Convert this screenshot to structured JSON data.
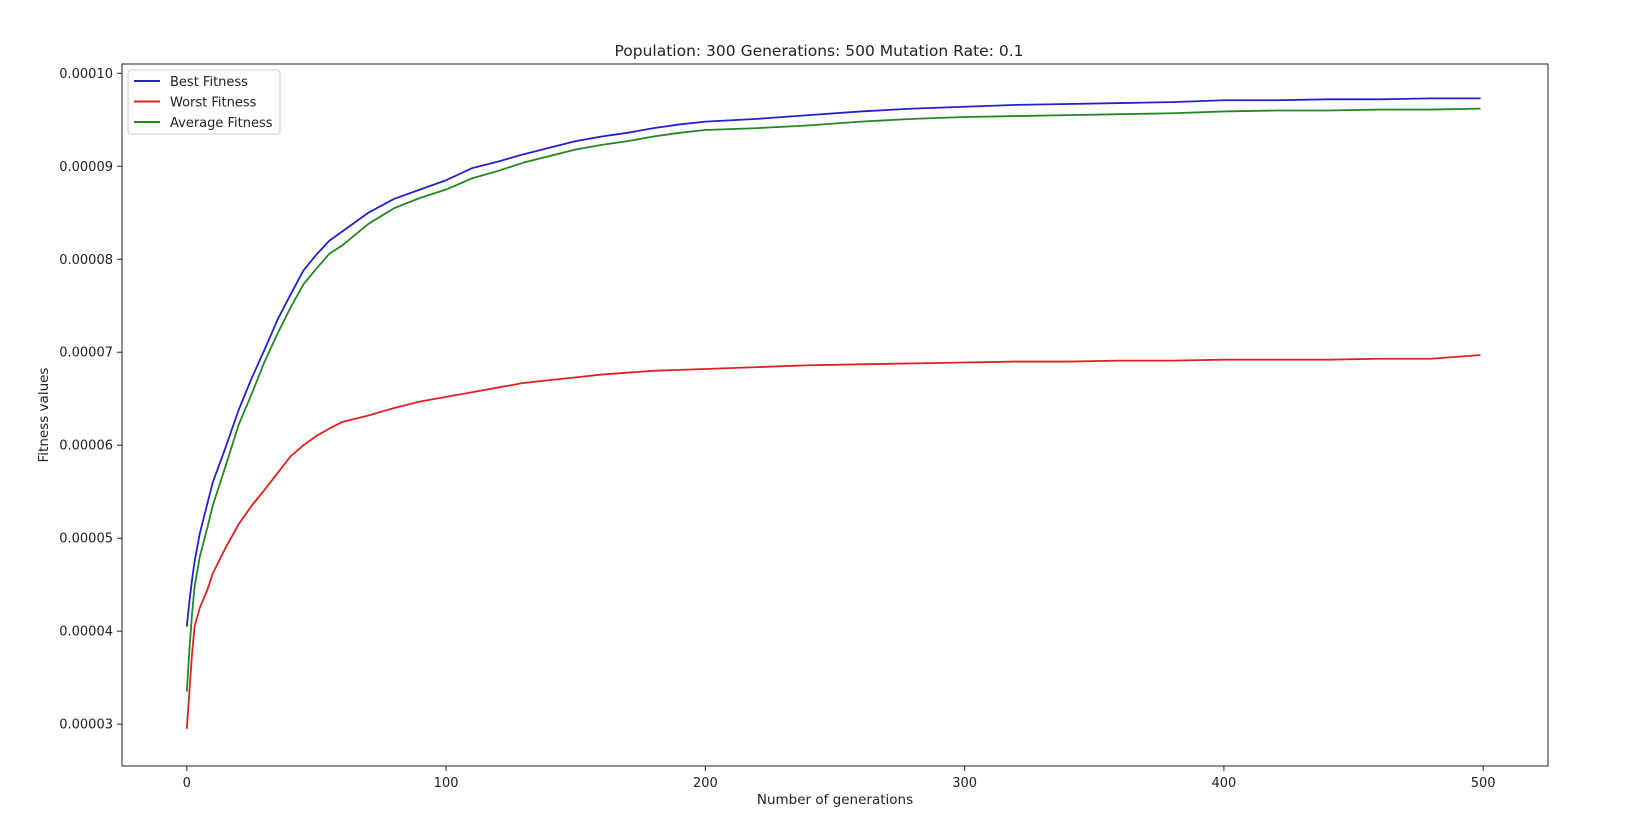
{
  "chart_data": {
    "type": "line",
    "title": "Population: 300 Generations: 500 Mutation Rate: 0.1",
    "xlabel": "Number of generations",
    "ylabel": "Fitness values",
    "xlim": [
      -25,
      525
    ],
    "ylim": [
      2.55e-05,
      0.000101
    ],
    "x_ticks": [
      0,
      100,
      200,
      300,
      400,
      500
    ],
    "x_tick_labels": [
      "0",
      "100",
      "200",
      "300",
      "400",
      "500"
    ],
    "y_ticks": [
      3e-05,
      4e-05,
      5e-05,
      6e-05,
      7e-05,
      8e-05,
      9e-05,
      0.0001
    ],
    "y_tick_labels": [
      "0.00003",
      "0.00004",
      "0.00005",
      "0.00006",
      "0.00007",
      "0.00008",
      "0.00009",
      "0.00010"
    ],
    "grid": false,
    "legend_position": "top-left",
    "x": [
      0,
      1,
      2,
      3,
      5,
      8,
      10,
      15,
      20,
      25,
      30,
      35,
      40,
      45,
      50,
      55,
      60,
      70,
      80,
      90,
      100,
      110,
      120,
      130,
      140,
      150,
      160,
      170,
      180,
      190,
      200,
      220,
      240,
      260,
      280,
      300,
      320,
      340,
      360,
      380,
      400,
      420,
      440,
      460,
      480,
      499
    ],
    "series": [
      {
        "name": "Best Fitness",
        "color": "#2222cc",
        "values": [
          4.05e-05,
          4.32e-05,
          4.55e-05,
          4.75e-05,
          5.05e-05,
          5.38e-05,
          5.6e-05,
          5.98e-05,
          6.38e-05,
          6.72e-05,
          7.03e-05,
          7.35e-05,
          7.62e-05,
          7.88e-05,
          8.05e-05,
          8.2e-05,
          8.3e-05,
          8.5e-05,
          8.65e-05,
          8.75e-05,
          8.85e-05,
          8.98e-05,
          9.05e-05,
          9.13e-05,
          9.2e-05,
          9.27e-05,
          9.32e-05,
          9.36e-05,
          9.41e-05,
          9.45e-05,
          9.48e-05,
          9.51e-05,
          9.55e-05,
          9.59e-05,
          9.62e-05,
          9.64e-05,
          9.66e-05,
          9.67e-05,
          9.68e-05,
          9.69e-05,
          9.71e-05,
          9.71e-05,
          9.72e-05,
          9.72e-05,
          9.73e-05,
          9.73e-05
        ]
      },
      {
        "name": "Worst Fitness",
        "color": "#dd2222",
        "values": [
          2.95e-05,
          3.35e-05,
          3.75e-05,
          4.05e-05,
          4.25e-05,
          4.45e-05,
          4.62e-05,
          4.9e-05,
          5.15e-05,
          5.35e-05,
          5.52e-05,
          5.7e-05,
          5.88e-05,
          6e-05,
          6.1e-05,
          6.18e-05,
          6.25e-05,
          6.32e-05,
          6.4e-05,
          6.47e-05,
          6.52e-05,
          6.57e-05,
          6.62e-05,
          6.67e-05,
          6.7e-05,
          6.73e-05,
          6.76e-05,
          6.78e-05,
          6.8e-05,
          6.81e-05,
          6.82e-05,
          6.84e-05,
          6.86e-05,
          6.87e-05,
          6.88e-05,
          6.89e-05,
          6.9e-05,
          6.9e-05,
          6.91e-05,
          6.91e-05,
          6.92e-05,
          6.92e-05,
          6.92e-05,
          6.93e-05,
          6.93e-05,
          6.97e-05
        ]
      },
      {
        "name": "Average Fitness",
        "color": "#228822",
        "values": [
          3.35e-05,
          3.8e-05,
          4.18e-05,
          4.48e-05,
          4.8e-05,
          5.12e-05,
          5.35e-05,
          5.78e-05,
          6.22e-05,
          6.55e-05,
          6.9e-05,
          7.2e-05,
          7.48e-05,
          7.73e-05,
          7.9e-05,
          8.06e-05,
          8.15e-05,
          8.38e-05,
          8.55e-05,
          8.66e-05,
          8.75e-05,
          8.87e-05,
          8.95e-05,
          9.04e-05,
          9.11e-05,
          9.18e-05,
          9.23e-05,
          9.27e-05,
          9.32e-05,
          9.36e-05,
          9.39e-05,
          9.41e-05,
          9.44e-05,
          9.48e-05,
          9.51e-05,
          9.53e-05,
          9.54e-05,
          9.55e-05,
          9.56e-05,
          9.57e-05,
          9.59e-05,
          9.6e-05,
          9.6e-05,
          9.61e-05,
          9.61e-05,
          9.62e-05
        ]
      }
    ]
  }
}
